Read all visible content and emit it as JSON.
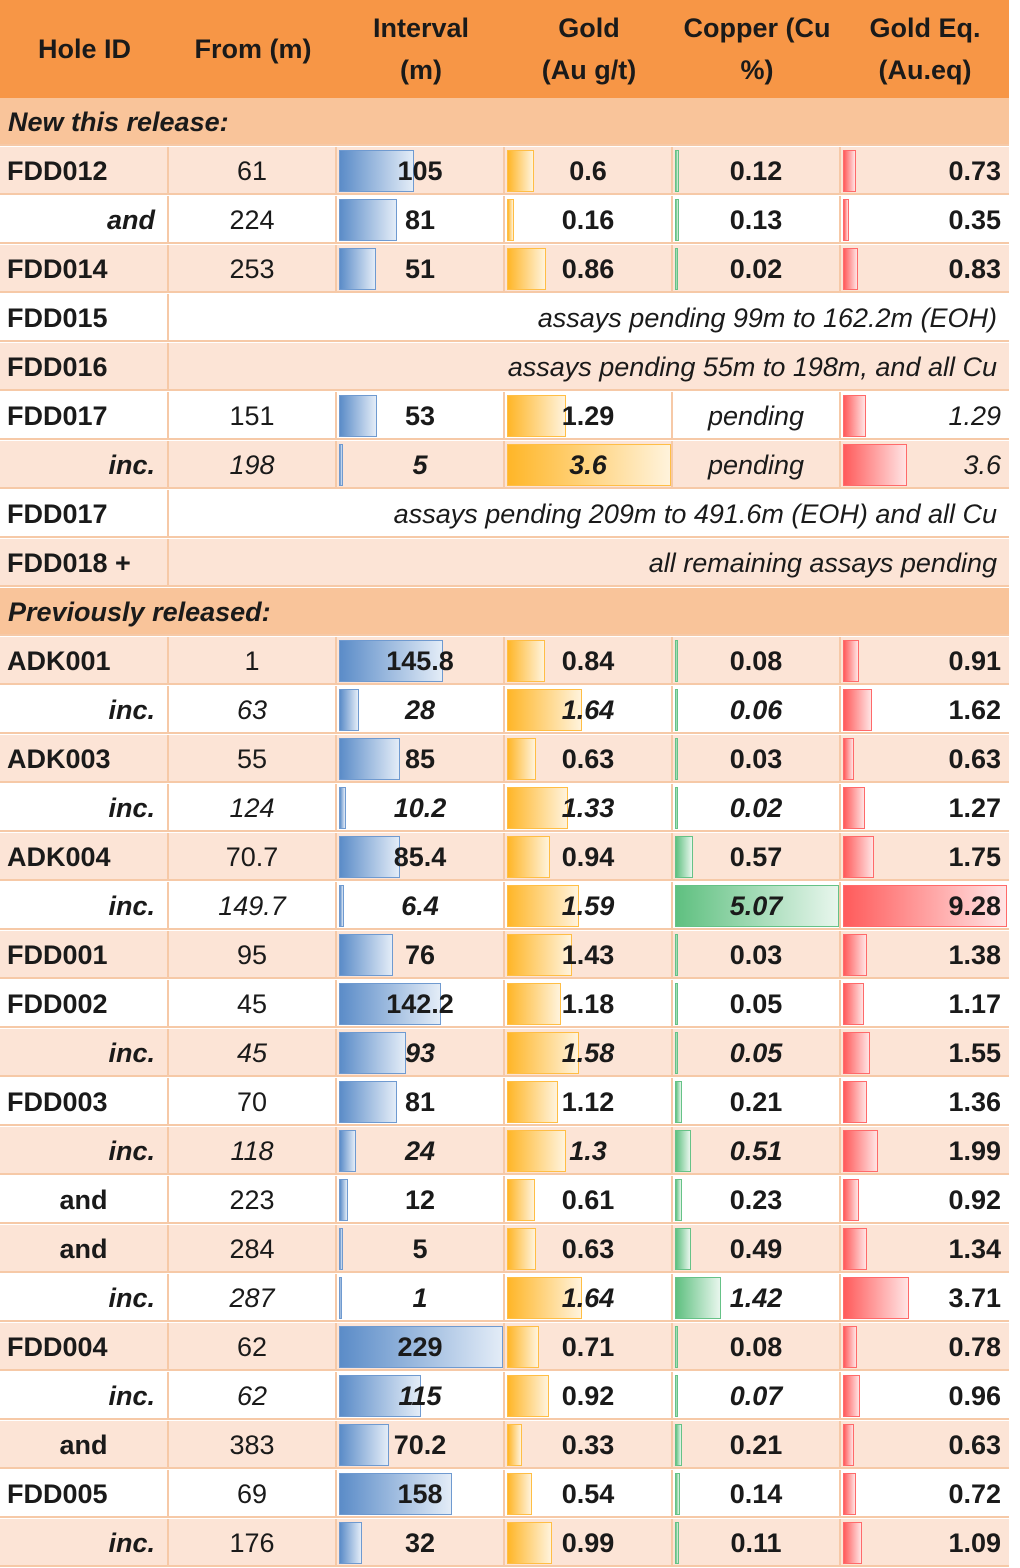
{
  "headers": [
    "Hole ID",
    "From (m)",
    "Interval\n(m)",
    "Gold\n(Au g/t)",
    "Copper (Cu\n%)",
    "Gold Eq.\n(Au.eq)"
  ],
  "sections": {
    "new": "New this release:",
    "previous": "Previously released:"
  },
  "rows": [
    {
      "type": "section",
      "key": "new"
    },
    {
      "type": "data",
      "id": "FDD012",
      "from": "61",
      "interval": "105",
      "au": "0.6",
      "cu": "0.12",
      "eq": "0.73",
      "style": "main"
    },
    {
      "type": "data",
      "id": "and",
      "from": "224",
      "interval": "81",
      "au": "0.16",
      "cu": "0.13",
      "eq": "0.35",
      "style": "sub-italic"
    },
    {
      "type": "data",
      "id": "FDD014",
      "from": "253",
      "interval": "51",
      "au": "0.86",
      "cu": "0.02",
      "eq": "0.83",
      "style": "main"
    },
    {
      "type": "note",
      "id": "FDD015",
      "note": "assays pending 99m to 162.2m (EOH)"
    },
    {
      "type": "note",
      "id": "FDD016",
      "note": "assays pending 55m to 198m, and all Cu"
    },
    {
      "type": "data",
      "id": "FDD017",
      "from": "151",
      "interval": "53",
      "au": "1.29",
      "cu": "pending",
      "eq": "1.29",
      "style": "pending"
    },
    {
      "type": "data",
      "id": "inc.",
      "from": "198",
      "interval": "5",
      "au": "3.6",
      "cu": "pending",
      "eq": "3.6",
      "style": "pending-inc"
    },
    {
      "type": "note",
      "id": "FDD017",
      "note": "assays pending 209m to 491.6m (EOH) and all Cu"
    },
    {
      "type": "note",
      "id": "FDD018 +",
      "note": "all remaining assays pending"
    },
    {
      "type": "section",
      "key": "previous"
    },
    {
      "type": "data",
      "id": "ADK001",
      "from": "1",
      "interval": "145.8",
      "au": "0.84",
      "cu": "0.08",
      "eq": "0.91",
      "style": "main"
    },
    {
      "type": "data",
      "id": "inc.",
      "from": "63",
      "interval": "28",
      "au": "1.64",
      "cu": "0.06",
      "eq": "1.62",
      "style": "inc"
    },
    {
      "type": "data",
      "id": "ADK003",
      "from": "55",
      "interval": "85",
      "au": "0.63",
      "cu": "0.03",
      "eq": "0.63",
      "style": "main"
    },
    {
      "type": "data",
      "id": "inc.",
      "from": "124",
      "interval": "10.2",
      "au": "1.33",
      "cu": "0.02",
      "eq": "1.27",
      "style": "inc"
    },
    {
      "type": "data",
      "id": "ADK004",
      "from": "70.7",
      "interval": "85.4",
      "au": "0.94",
      "cu": "0.57",
      "eq": "1.75",
      "style": "main"
    },
    {
      "type": "data",
      "id": "inc.",
      "from": "149.7",
      "interval": "6.4",
      "au": "1.59",
      "cu": "5.07",
      "eq": "9.28",
      "style": "inc"
    },
    {
      "type": "data",
      "id": "FDD001",
      "from": "95",
      "interval": "76",
      "au": "1.43",
      "cu": "0.03",
      "eq": "1.38",
      "style": "main"
    },
    {
      "type": "data",
      "id": "FDD002",
      "from": "45",
      "interval": "142.2",
      "au": "1.18",
      "cu": "0.05",
      "eq": "1.17",
      "style": "main"
    },
    {
      "type": "data",
      "id": "inc.",
      "from": "45",
      "interval": "93",
      "au": "1.58",
      "cu": "0.05",
      "eq": "1.55",
      "style": "inc"
    },
    {
      "type": "data",
      "id": "FDD003",
      "from": "70",
      "interval": "81",
      "au": "1.12",
      "cu": "0.21",
      "eq": "1.36",
      "style": "main"
    },
    {
      "type": "data",
      "id": "inc.",
      "from": "118",
      "interval": "24",
      "au": "1.3",
      "cu": "0.51",
      "eq": "1.99",
      "style": "inc"
    },
    {
      "type": "data",
      "id": "and",
      "from": "223",
      "interval": "12",
      "au": "0.61",
      "cu": "0.23",
      "eq": "0.92",
      "style": "and-center"
    },
    {
      "type": "data",
      "id": "and",
      "from": "284",
      "interval": "5",
      "au": "0.63",
      "cu": "0.49",
      "eq": "1.34",
      "style": "and-center"
    },
    {
      "type": "data",
      "id": "inc.",
      "from": "287",
      "interval": "1",
      "au": "1.64",
      "cu": "1.42",
      "eq": "3.71",
      "style": "inc"
    },
    {
      "type": "data",
      "id": "FDD004",
      "from": "62",
      "interval": "229",
      "au": "0.71",
      "cu": "0.08",
      "eq": "0.78",
      "style": "main"
    },
    {
      "type": "data",
      "id": "inc.",
      "from": "62",
      "interval": "115",
      "au": "0.92",
      "cu": "0.07",
      "eq": "0.96",
      "style": "inc-partial"
    },
    {
      "type": "data",
      "id": "and",
      "from": "383",
      "interval": "70.2",
      "au": "0.33",
      "cu": "0.21",
      "eq": "0.63",
      "style": "and-center"
    },
    {
      "type": "data",
      "id": "FDD005",
      "from": "69",
      "interval": "158",
      "au": "0.54",
      "cu": "0.14",
      "eq": "0.72",
      "style": "main"
    },
    {
      "type": "data",
      "id": "inc.",
      "from": "176",
      "interval": "32",
      "au": "0.99",
      "cu": "0.11",
      "eq": "1.09",
      "style": "inc-partial2"
    }
  ],
  "scale": {
    "interval_max": 229,
    "au_max": 3.6,
    "cu_max": 5.07,
    "eq_max": 9.28
  },
  "colors": {
    "header": "#f79646",
    "section": "#f9c49a",
    "band": "#fce4d6",
    "interval_bar": "#5b8cc8",
    "gold_bar": "#ffb628",
    "copper_bar": "#5fc080",
    "eq_bar": "#ff5b5b"
  }
}
